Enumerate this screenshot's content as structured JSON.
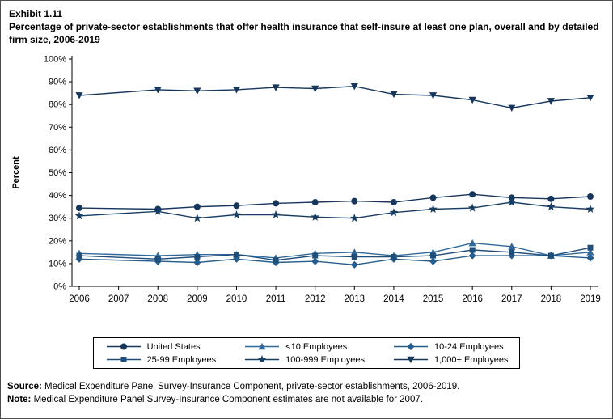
{
  "header": {
    "exhibit": "Exhibit 1.11",
    "title": "Percentage of private-sector establishments that offer health insurance that self-insure at least one plan, overall and by detailed firm size, 2006-2019"
  },
  "chart_data": {
    "type": "line",
    "title": "Percentage of private-sector establishments that offer health insurance that self-insure at least one plan, overall and by detailed firm size, 2006-2019",
    "xlabel": "",
    "ylabel": "Percent",
    "ylim": [
      0,
      100
    ],
    "y_tick_step": 10,
    "y_tick_suffix": "%",
    "grid": false,
    "legend_position": "bottom",
    "x": [
      2006,
      2007,
      2008,
      2009,
      2010,
      2011,
      2012,
      2013,
      2014,
      2015,
      2016,
      2017,
      2018,
      2019
    ],
    "x_range": [
      2006,
      2019
    ],
    "missing_years": [
      2007
    ],
    "series": [
      {
        "name": "United States",
        "marker": "circle",
        "color": "#16365c",
        "values": [
          34.5,
          null,
          34.0,
          35.0,
          35.5,
          36.5,
          37.0,
          37.5,
          37.0,
          39.0,
          40.5,
          39.0,
          38.5,
          39.5
        ]
      },
      {
        "name": "<10 Employees",
        "marker": "triangle-up",
        "color": "#31699b",
        "values": [
          14.5,
          null,
          13.5,
          14.0,
          14.0,
          12.5,
          14.5,
          15.0,
          13.5,
          15.0,
          19.0,
          17.5,
          13.5,
          15.0
        ]
      },
      {
        "name": "10-24 Employees",
        "marker": "diamond",
        "color": "#265d8c",
        "values": [
          12.0,
          null,
          11.0,
          10.5,
          12.0,
          10.5,
          11.0,
          9.5,
          12.0,
          11.0,
          13.5,
          13.5,
          13.5,
          12.5
        ]
      },
      {
        "name": "25-99 Employees",
        "marker": "square",
        "color": "#1f4e79",
        "values": [
          13.5,
          null,
          12.0,
          13.0,
          14.0,
          11.5,
          13.5,
          13.0,
          13.0,
          13.5,
          16.0,
          15.0,
          13.5,
          17.0
        ]
      },
      {
        "name": "100-999 Employees",
        "marker": "star",
        "color": "#173d63",
        "values": [
          31.0,
          null,
          33.0,
          30.0,
          31.5,
          31.5,
          30.5,
          30.0,
          32.5,
          34.0,
          34.5,
          37.0,
          35.0,
          34.0
        ]
      },
      {
        "name": "1,000+ Employees",
        "marker": "triangle-down",
        "color": "#16365c",
        "values": [
          84.0,
          null,
          86.5,
          86.0,
          86.5,
          87.5,
          87.0,
          88.0,
          84.5,
          84.0,
          82.0,
          78.5,
          81.5,
          83.0
        ]
      }
    ]
  },
  "footer": {
    "source_label": "Source:",
    "source_text": " Medical Expenditure Panel Survey-Insurance Component, private-sector establishments, 2006-2019.",
    "note_label": "Note:",
    "note_text": " Medical Expenditure Panel Survey-Insurance Component estimates are not available for 2007."
  }
}
